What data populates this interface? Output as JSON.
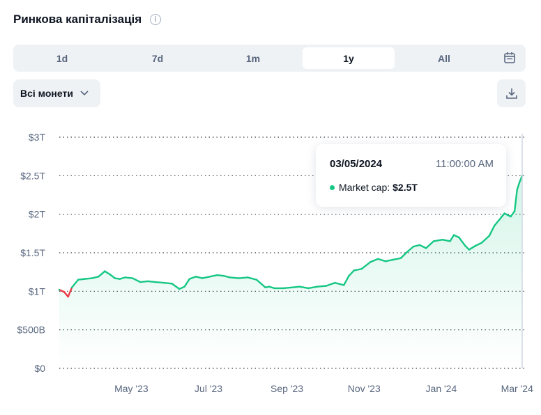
{
  "header": {
    "title": "Ринкова капіталізація",
    "info_icon": "info-icon"
  },
  "tabs": [
    {
      "label": "1d",
      "active": false
    },
    {
      "label": "7d",
      "active": false
    },
    {
      "label": "1m",
      "active": false
    },
    {
      "label": "1y",
      "active": true
    },
    {
      "label": "All",
      "active": false
    }
  ],
  "calendar_icon": "calendar-icon",
  "filter": {
    "label": "Всі монети",
    "icon": "chevron-down-icon"
  },
  "download_icon": "download-icon",
  "colors": {
    "up": "#16c784",
    "down": "#ea3943",
    "text": "#0d1421",
    "muted": "#58667e",
    "grid": "#3b3f48"
  },
  "tooltip": {
    "date": "03/05/2024",
    "time": "11:00:00 AM",
    "series_label": "Market cap:",
    "value": "$2.5T"
  },
  "chart_data": {
    "type": "line",
    "y_tick_labels": [
      "$0",
      "$500B",
      "$1T",
      "$1.5T",
      "$2T",
      "$2.5T",
      "$3T"
    ],
    "y_ticks": [
      0,
      0.5,
      1,
      1.5,
      2,
      2.5,
      3
    ],
    "x_tick_labels": [
      "May '23",
      "Jul '23",
      "Sep '23",
      "Nov '23",
      "Jan '24",
      "Mar '24"
    ],
    "x_tick_dates": [
      "2023-05-01",
      "2023-07-01",
      "2023-09-01",
      "2023-11-01",
      "2024-01-01",
      "2024-03-01"
    ],
    "ylim": [
      0,
      3
    ],
    "xlim": [
      "2023-03-05",
      "2024-03-05"
    ],
    "unit": "trillion USD",
    "grid": true,
    "legend": "none",
    "series": [
      {
        "x": [
          "2023-03-05",
          "2023-03-09",
          "2023-03-12",
          "2023-03-15",
          "2023-03-20",
          "2023-03-25",
          "2023-03-31",
          "2023-04-05",
          "2023-04-10",
          "2023-04-14",
          "2023-04-18",
          "2023-04-22",
          "2023-04-26",
          "2023-05-02",
          "2023-05-08",
          "2023-05-14",
          "2023-05-20",
          "2023-05-27",
          "2023-06-02",
          "2023-06-08",
          "2023-06-12",
          "2023-06-16",
          "2023-06-21",
          "2023-06-26",
          "2023-07-02",
          "2023-07-08",
          "2023-07-13",
          "2023-07-18",
          "2023-07-25",
          "2023-08-01",
          "2023-08-08",
          "2023-08-15",
          "2023-08-18",
          "2023-08-22",
          "2023-08-29",
          "2023-09-05",
          "2023-09-11",
          "2023-09-18",
          "2023-09-25",
          "2023-10-02",
          "2023-10-09",
          "2023-10-16",
          "2023-10-20",
          "2023-10-24",
          "2023-10-30",
          "2023-11-06",
          "2023-11-12",
          "2023-11-18",
          "2023-11-24",
          "2023-11-30",
          "2023-12-05",
          "2023-12-10",
          "2023-12-15",
          "2023-12-20",
          "2023-12-26",
          "2024-01-02",
          "2024-01-08",
          "2024-01-11",
          "2024-01-15",
          "2024-01-20",
          "2024-01-23",
          "2024-01-28",
          "2024-02-02",
          "2024-02-08",
          "2024-02-12",
          "2024-02-16",
          "2024-02-20",
          "2024-02-25",
          "2024-02-28",
          "2024-03-01",
          "2024-03-03",
          "2024-03-05"
        ],
        "y": [
          1.02,
          0.99,
          0.93,
          1.05,
          1.15,
          1.16,
          1.17,
          1.19,
          1.26,
          1.22,
          1.17,
          1.16,
          1.18,
          1.17,
          1.12,
          1.13,
          1.12,
          1.11,
          1.1,
          1.03,
          1.06,
          1.16,
          1.19,
          1.17,
          1.19,
          1.21,
          1.2,
          1.18,
          1.17,
          1.18,
          1.15,
          1.05,
          1.06,
          1.04,
          1.04,
          1.05,
          1.06,
          1.04,
          1.06,
          1.07,
          1.11,
          1.08,
          1.2,
          1.27,
          1.29,
          1.38,
          1.42,
          1.39,
          1.41,
          1.43,
          1.51,
          1.58,
          1.6,
          1.56,
          1.65,
          1.67,
          1.65,
          1.73,
          1.7,
          1.59,
          1.54,
          1.59,
          1.63,
          1.72,
          1.85,
          1.93,
          2.01,
          1.97,
          2.04,
          2.32,
          2.42,
          2.5
        ]
      }
    ]
  }
}
